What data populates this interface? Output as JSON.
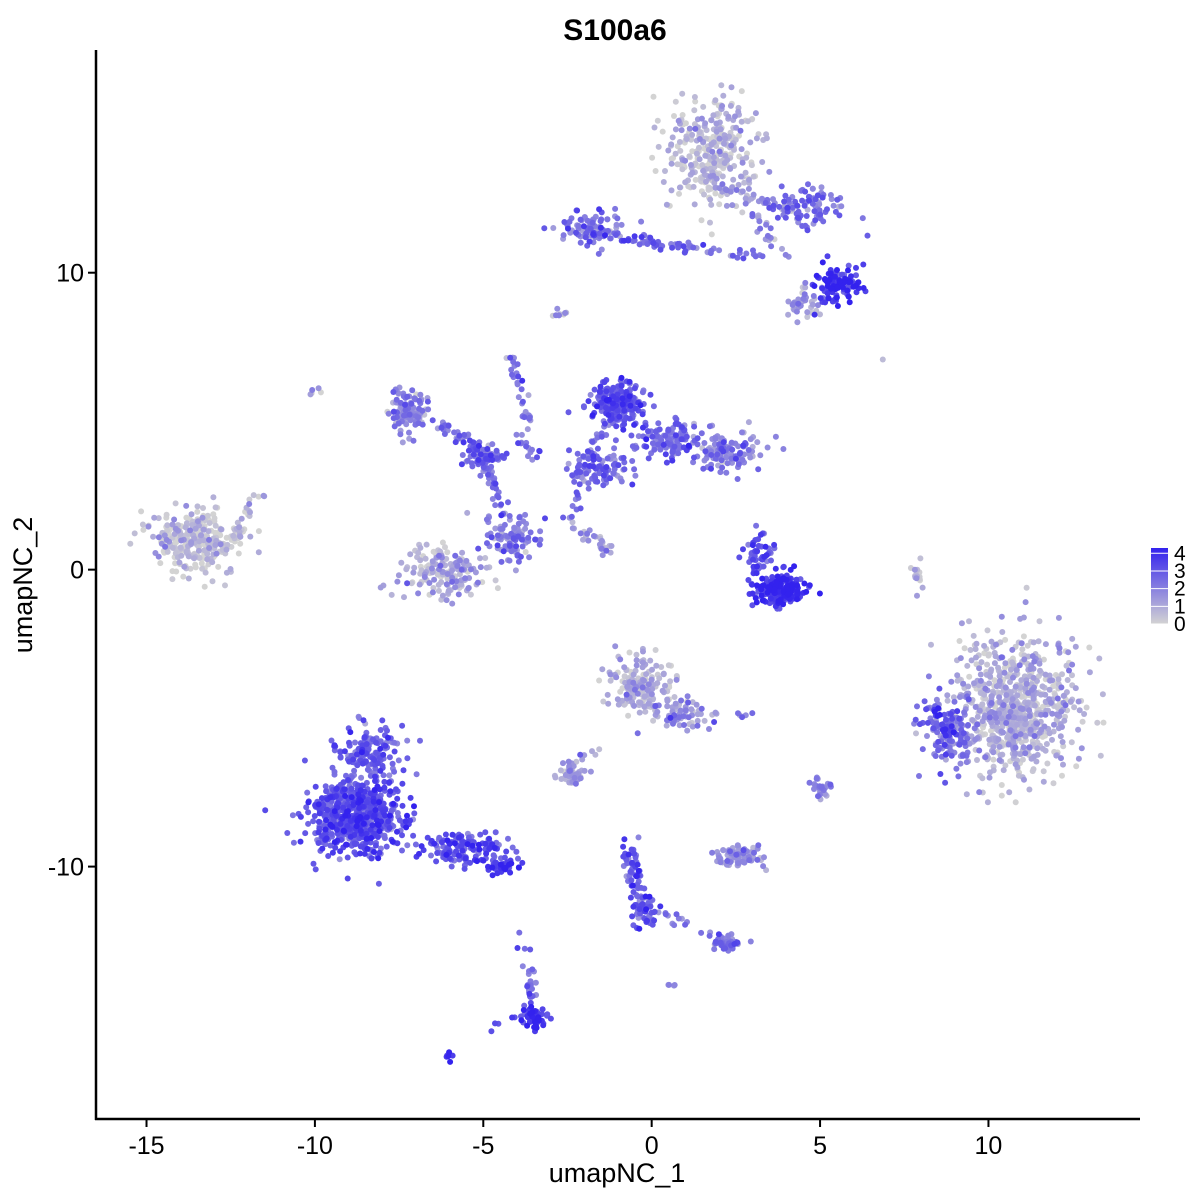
{
  "chart_data": {
    "type": "scatter",
    "title": "S100a6",
    "xlabel": "umapNC_1",
    "ylabel": "umapNC_2",
    "xlim": [
      -16.5,
      14.5
    ],
    "ylim": [
      -18.5,
      17.5
    ],
    "x_ticks": [
      -15,
      -10,
      -5,
      0,
      5,
      10
    ],
    "x_tick_labels": [
      "-15",
      "-10",
      "-5",
      "0",
      "5",
      "10"
    ],
    "y_ticks": [
      -10,
      0,
      10
    ],
    "y_tick_labels": [
      "-10",
      "0",
      "10"
    ],
    "grid": false,
    "legend": {
      "placement": "right",
      "type": "colorbar",
      "ticks": [
        0,
        1,
        2,
        3,
        4
      ],
      "tick_labels": [
        "0",
        "1",
        "2",
        "3",
        "4"
      ],
      "low_color": "#d3d3d3",
      "high_color": "#3322ee"
    },
    "color_scale": {
      "min": 0,
      "max": 4.3
    },
    "clusters": [
      {
        "cx": -13.5,
        "cy": 1.0,
        "sx": 0.9,
        "sy": 0.7,
        "n": 300,
        "mean": 0.25
      },
      {
        "cx": 1.8,
        "cy": 14.0,
        "sx": 0.9,
        "sy": 1.2,
        "n": 320,
        "mean": 0.5
      },
      {
        "cx": -1.8,
        "cy": 11.5,
        "sx": 0.6,
        "sy": 0.4,
        "n": 90,
        "mean": 2.3
      },
      {
        "cx": 4.7,
        "cy": 12.2,
        "sx": 0.8,
        "sy": 0.5,
        "n": 80,
        "mean": 2.4
      },
      {
        "cx": 5.5,
        "cy": 9.6,
        "sx": 0.5,
        "sy": 0.4,
        "n": 110,
        "mean": 3.8
      },
      {
        "cx": 4.5,
        "cy": 9.0,
        "sx": 0.4,
        "sy": 0.4,
        "n": 40,
        "mean": 1.4
      },
      {
        "cx": -7.2,
        "cy": 5.3,
        "sx": 0.4,
        "sy": 0.5,
        "n": 110,
        "mean": 1.8
      },
      {
        "cx": -5.0,
        "cy": 3.8,
        "sx": 0.4,
        "sy": 0.3,
        "n": 60,
        "mean": 2.5
      },
      {
        "cx": -4.2,
        "cy": 1.1,
        "sx": 0.5,
        "sy": 0.7,
        "n": 90,
        "mean": 2.0
      },
      {
        "cx": -6.2,
        "cy": -0.1,
        "sx": 0.8,
        "sy": 0.6,
        "n": 160,
        "mean": 1.0
      },
      {
        "cx": -1.0,
        "cy": 5.6,
        "sx": 0.5,
        "sy": 0.5,
        "n": 220,
        "mean": 3.0
      },
      {
        "cx": 0.6,
        "cy": 4.4,
        "sx": 0.7,
        "sy": 0.4,
        "n": 120,
        "mean": 2.3
      },
      {
        "cx": 2.3,
        "cy": 4.0,
        "sx": 0.6,
        "sy": 0.4,
        "n": 110,
        "mean": 1.8
      },
      {
        "cx": -1.4,
        "cy": 3.5,
        "sx": 0.6,
        "sy": 0.4,
        "n": 80,
        "mean": 2.5
      },
      {
        "cx": 3.8,
        "cy": -0.7,
        "sx": 0.5,
        "sy": 0.35,
        "n": 200,
        "mean": 3.7
      },
      {
        "cx": 3.2,
        "cy": 0.6,
        "sx": 0.3,
        "sy": 0.5,
        "n": 50,
        "mean": 3.0
      },
      {
        "cx": 10.8,
        "cy": -4.6,
        "sx": 1.2,
        "sy": 1.5,
        "n": 750,
        "mean": 0.75
      },
      {
        "cx": 8.8,
        "cy": -5.5,
        "sx": 0.5,
        "sy": 0.8,
        "n": 120,
        "mean": 2.4
      },
      {
        "cx": -0.3,
        "cy": -3.9,
        "sx": 0.7,
        "sy": 0.7,
        "n": 170,
        "mean": 0.8
      },
      {
        "cx": 1.2,
        "cy": -4.9,
        "sx": 0.5,
        "sy": 0.4,
        "n": 40,
        "mean": 1.6
      },
      {
        "cx": -2.3,
        "cy": -6.9,
        "sx": 0.3,
        "sy": 0.25,
        "n": 50,
        "mean": 1.0
      },
      {
        "cx": -8.8,
        "cy": -8.3,
        "sx": 0.9,
        "sy": 0.8,
        "n": 650,
        "mean": 3.0
      },
      {
        "cx": -8.4,
        "cy": -6.2,
        "sx": 0.7,
        "sy": 0.6,
        "n": 150,
        "mean": 2.7
      },
      {
        "cx": -5.6,
        "cy": -9.4,
        "sx": 0.9,
        "sy": 0.35,
        "n": 140,
        "mean": 3.2
      },
      {
        "cx": -4.4,
        "cy": -10.0,
        "sx": 0.4,
        "sy": 0.2,
        "n": 40,
        "mean": 3.5
      },
      {
        "cx": 2.5,
        "cy": -9.6,
        "sx": 0.5,
        "sy": 0.25,
        "n": 90,
        "mean": 1.4
      },
      {
        "cx": -0.2,
        "cy": -11.5,
        "sx": 0.25,
        "sy": 0.35,
        "n": 40,
        "mean": 3.2
      },
      {
        "cx": -0.5,
        "cy": -10.0,
        "sx": 0.15,
        "sy": 0.6,
        "n": 30,
        "mean": 2.8
      },
      {
        "cx": 2.2,
        "cy": -12.6,
        "sx": 0.3,
        "sy": 0.2,
        "n": 40,
        "mean": 2.2
      },
      {
        "cx": -3.5,
        "cy": -15.1,
        "sx": 0.25,
        "sy": 0.3,
        "n": 45,
        "mean": 3.7
      },
      {
        "cx": -3.6,
        "cy": -14.0,
        "sx": 0.1,
        "sy": 0.6,
        "n": 20,
        "mean": 2.6
      },
      {
        "cx": 5.0,
        "cy": -7.3,
        "sx": 0.2,
        "sy": 0.25,
        "n": 25,
        "mean": 2.0
      },
      {
        "cx": 7.9,
        "cy": -0.3,
        "sx": 0.12,
        "sy": 0.5,
        "n": 15,
        "mean": 0.6
      },
      {
        "cx": -10.0,
        "cy": 6.0,
        "sx": 0.12,
        "sy": 0.12,
        "n": 5,
        "mean": 0.5
      },
      {
        "cx": -2.8,
        "cy": 8.6,
        "sx": 0.2,
        "sy": 0.15,
        "n": 8,
        "mean": 1.2
      },
      {
        "cx": -6.0,
        "cy": -16.4,
        "sx": 0.15,
        "sy": 0.1,
        "n": 6,
        "mean": 3.9
      },
      {
        "cx": 0.6,
        "cy": -14.0,
        "sx": 0.1,
        "sy": 0.1,
        "n": 4,
        "mean": 1.8
      },
      {
        "cx": 2.8,
        "cy": -4.9,
        "sx": 0.2,
        "sy": 0.1,
        "n": 5,
        "mean": 2.0
      }
    ],
    "bridges": [
      {
        "from": [
          -1.6,
          11.3
        ],
        "to": [
          0.2,
          11.0
        ],
        "n": 40,
        "mean": 2.4
      },
      {
        "from": [
          0.2,
          11.0
        ],
        "to": [
          3.2,
          10.6
        ],
        "n": 35,
        "mean": 2.6
      },
      {
        "from": [
          1.8,
          13.0
        ],
        "to": [
          4.4,
          12.0
        ],
        "n": 45,
        "mean": 1.5
      },
      {
        "from": [
          3.0,
          12.0
        ],
        "to": [
          4.0,
          10.5
        ],
        "n": 20,
        "mean": 1.8
      },
      {
        "from": [
          -6.5,
          5.0
        ],
        "to": [
          -5.0,
          4.0
        ],
        "n": 40,
        "mean": 2.2
      },
      {
        "from": [
          -5.0,
          3.9
        ],
        "to": [
          -4.4,
          1.8
        ],
        "n": 30,
        "mean": 2.3
      },
      {
        "from": [
          -4.2,
          7.5
        ],
        "to": [
          -3.6,
          4.5
        ],
        "n": 30,
        "mean": 2.3
      },
      {
        "from": [
          -4.0,
          4.5
        ],
        "to": [
          -3.4,
          3.8
        ],
        "n": 15,
        "mean": 2.5
      },
      {
        "from": [
          -2.3,
          3.0
        ],
        "to": [
          -1.3,
          5.0
        ],
        "n": 30,
        "mean": 2.3
      },
      {
        "from": [
          -2.4,
          1.6
        ],
        "to": [
          -1.9,
          3.0
        ],
        "n": 12,
        "mean": 2.0
      },
      {
        "from": [
          -2.3,
          1.4
        ],
        "to": [
          -1.5,
          0.8
        ],
        "n": 12,
        "mean": 1.5
      },
      {
        "from": [
          -1.5,
          0.8
        ],
        "to": [
          -1.2,
          0.5
        ],
        "n": 8,
        "mean": 1.3
      },
      {
        "from": [
          -2.3,
          1.5
        ],
        "to": [
          -1.3,
          0.7
        ],
        "n": 10,
        "mean": 1.2
      },
      {
        "from": [
          -4.8,
          1.2
        ],
        "to": [
          -3.4,
          1.0
        ],
        "n": 10,
        "mean": 2.3
      },
      {
        "from": [
          0.0,
          -4.5
        ],
        "to": [
          1.2,
          -5.4
        ],
        "n": 25,
        "mean": 1.6
      },
      {
        "from": [
          -2.6,
          -6.7
        ],
        "to": [
          -1.5,
          -6.0
        ],
        "n": 12,
        "mean": 1.2
      },
      {
        "from": [
          -0.8,
          -9.3
        ],
        "to": [
          -0.2,
          -11.4
        ],
        "n": 30,
        "mean": 2.8
      },
      {
        "from": [
          -0.2,
          -11.3
        ],
        "to": [
          2.3,
          -12.6
        ],
        "n": 18,
        "mean": 2.1
      },
      {
        "from": [
          -3.9,
          -11.8
        ],
        "to": [
          -3.6,
          -13.8
        ],
        "n": 5,
        "mean": 2.8
      },
      {
        "from": [
          -5.0,
          -15.5
        ],
        "to": [
          -3.8,
          -15.2
        ],
        "n": 5,
        "mean": 3.5
      },
      {
        "from": [
          -12.4,
          1.0
        ],
        "to": [
          -11.6,
          2.7
        ],
        "n": 25,
        "mean": 0.5
      },
      {
        "from": [
          8.4,
          -4.6
        ],
        "to": [
          8.9,
          -5.7
        ],
        "n": 20,
        "mean": 3.5
      },
      {
        "from": [
          6.8,
          7.1
        ],
        "to": [
          6.8,
          7.1
        ],
        "n": 1,
        "mean": 0.8
      },
      {
        "from": [
          -3.0,
          -15.0
        ],
        "to": [
          -3.5,
          -15.2
        ],
        "n": 8,
        "mean": 4.0
      }
    ]
  }
}
